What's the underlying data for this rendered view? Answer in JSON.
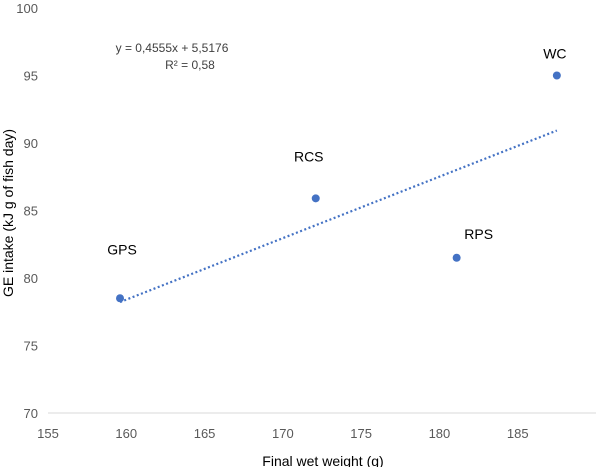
{
  "chart_data": {
    "type": "scatter",
    "xlabel": "Final wet weight (g)",
    "ylabel": "GE intake (kJ g of fish day)",
    "xlim": [
      155,
      190
    ],
    "ylim": [
      70,
      100
    ],
    "x_ticks": [
      "155",
      "160",
      "165",
      "170",
      "175",
      "180",
      "185"
    ],
    "y_ticks": [
      "70",
      "75",
      "80",
      "85",
      "90",
      "95",
      "100"
    ],
    "grid": false,
    "points": [
      {
        "label": "GPS",
        "x": 159.6,
        "y": 78.5
      },
      {
        "label": "RCS",
        "x": 172.1,
        "y": 85.9
      },
      {
        "label": "RPS",
        "x": 181.1,
        "y": 81.5
      },
      {
        "label": "WC",
        "x": 187.5,
        "y": 95.0
      }
    ],
    "trendline": {
      "type": "linear",
      "slope": 0.4555,
      "intercept": 5.5176,
      "x_range": [
        159.6,
        187.5
      ],
      "equation_text": "y = 0,4555x + 5,5176",
      "r2_text": "R² = 0,58",
      "style": "dotted"
    },
    "colors": {
      "marker": "#4472c4",
      "trendline": "#4472c4",
      "axis": "#d9d9d9"
    }
  }
}
